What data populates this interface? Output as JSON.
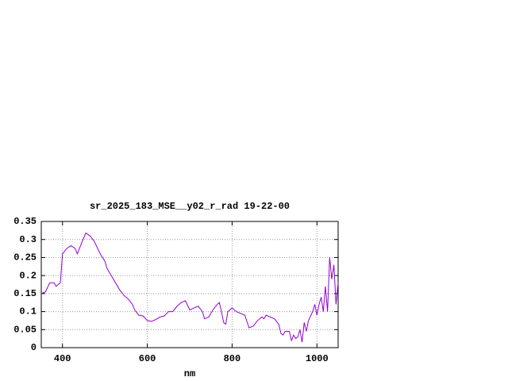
{
  "chart_data": {
    "type": "line",
    "title": "sr_2025_183_MSE__y02_r_rad 19-22-00",
    "x_label": "nm",
    "xlim": [
      350,
      1050
    ],
    "ylim": [
      0,
      0.35
    ],
    "xticks": [
      400,
      600,
      800,
      1000
    ],
    "yticks": [
      0,
      0.05,
      0.1,
      0.15,
      0.2,
      0.25,
      0.3,
      0.35
    ],
    "grid": true,
    "series": [
      {
        "color": "#9400d3",
        "x": [
          350,
          360,
          370,
          380,
          385,
          395,
          400,
          410,
          420,
          430,
          435,
          445,
          455,
          465,
          475,
          485,
          490,
          500,
          505,
          515,
          525,
          535,
          545,
          555,
          565,
          570,
          580,
          590,
          600,
          610,
          620,
          630,
          640,
          650,
          660,
          670,
          680,
          690,
          700,
          710,
          720,
          730,
          735,
          745,
          755,
          765,
          770,
          775,
          780,
          785,
          790,
          800,
          810,
          820,
          830,
          840,
          850,
          860,
          870,
          875,
          880,
          890,
          900,
          910,
          915,
          920,
          925,
          935,
          940,
          945,
          950,
          955,
          960,
          965,
          970,
          975,
          980,
          990,
          995,
          1000,
          1005,
          1010,
          1015,
          1020,
          1025,
          1030,
          1035,
          1040,
          1045,
          1050
        ],
        "values": [
          0.15,
          0.155,
          0.18,
          0.18,
          0.17,
          0.18,
          0.26,
          0.275,
          0.283,
          0.275,
          0.26,
          0.29,
          0.318,
          0.31,
          0.295,
          0.27,
          0.258,
          0.24,
          0.22,
          0.2,
          0.18,
          0.16,
          0.145,
          0.135,
          0.12,
          0.105,
          0.09,
          0.088,
          0.075,
          0.073,
          0.078,
          0.085,
          0.088,
          0.1,
          0.1,
          0.115,
          0.125,
          0.13,
          0.105,
          0.11,
          0.115,
          0.1,
          0.08,
          0.085,
          0.105,
          0.12,
          0.125,
          0.1,
          0.07,
          0.065,
          0.1,
          0.11,
          0.1,
          0.095,
          0.09,
          0.055,
          0.06,
          0.075,
          0.085,
          0.08,
          0.09,
          0.085,
          0.08,
          0.065,
          0.04,
          0.035,
          0.045,
          0.045,
          0.02,
          0.035,
          0.025,
          0.03,
          0.05,
          0.015,
          0.07,
          0.045,
          0.075,
          0.1,
          0.12,
          0.09,
          0.12,
          0.14,
          0.1,
          0.17,
          0.1,
          0.25,
          0.19,
          0.23,
          0.12,
          0.18
        ]
      }
    ]
  }
}
